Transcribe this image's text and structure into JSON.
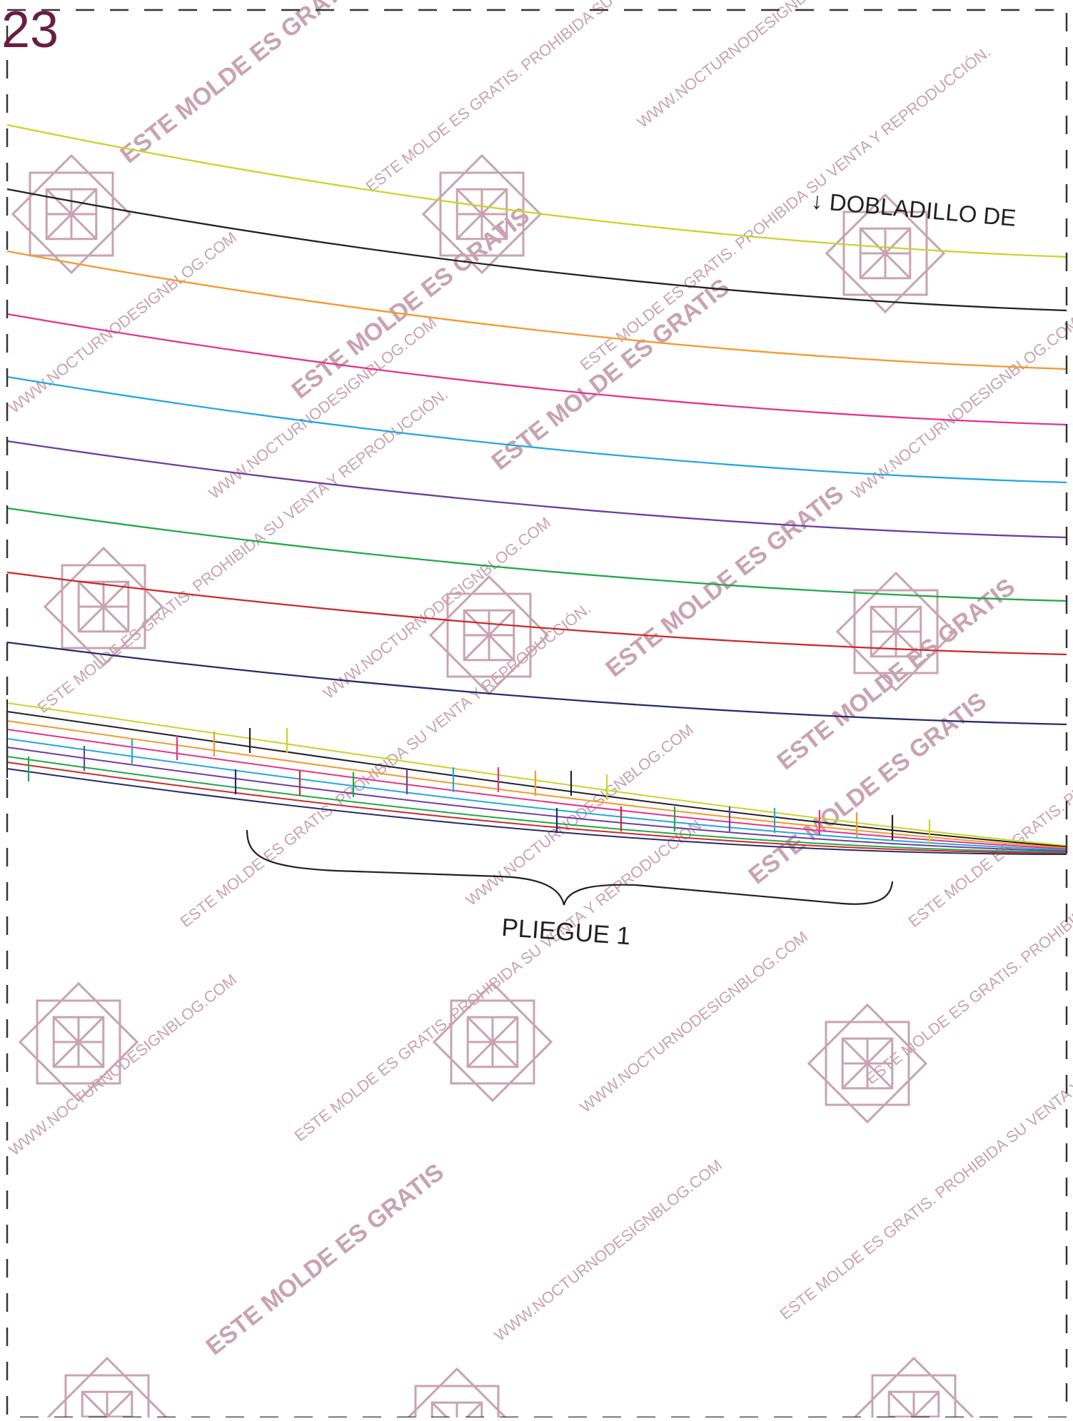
{
  "page": {
    "number": "23"
  },
  "labels": {
    "hem": "↓ DOBLADILLO DE ",
    "pleat": "PLIEGUE 1"
  },
  "watermark": {
    "lines": [
      "ESTE MOLDE ES GRATIS",
      "ESTE MOLDE ES GRATIS. PROHIBIDA SU VENTA Y REPRODUCCIÓN.",
      "WWW.NOCTURNODESIGNBLOG.COM"
    ],
    "color": "#c9a3b2"
  },
  "size_line_colors": [
    "#c9d42a",
    "#222222",
    "#f39a2c",
    "#e6338a",
    "#22a8e0",
    "#6b3fa0",
    "#22a84a",
    "#cc2a2a",
    "#2a2a6b"
  ],
  "colors": {
    "page_number": "#6a1d42",
    "dashed_border": "#333333"
  }
}
